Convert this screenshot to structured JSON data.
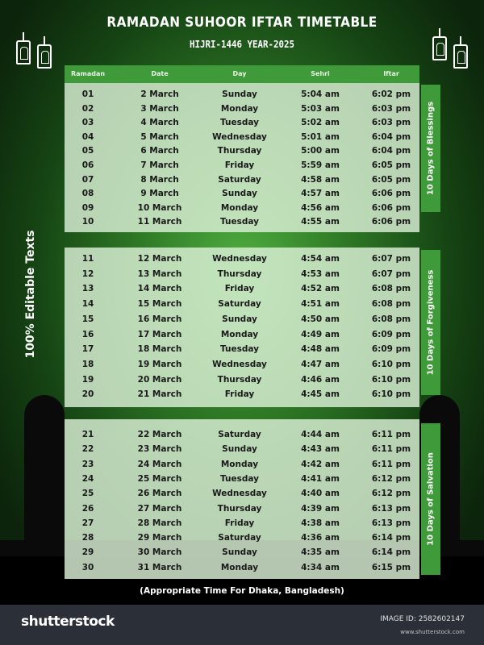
{
  "title": "RAMADAN  SUHOOR IFTAR TIMETABLE",
  "subtitle": "HIJRI-1446   YEAR-2025",
  "side_label": "100% Editable Texts",
  "columns": [
    "Ramadan",
    "Date",
    "Day",
    "Sehri",
    "Iftar"
  ],
  "sections": [
    {
      "label": "10 Days of Blessings",
      "rows": [
        [
          "01",
          "2 March",
          "Sunday",
          "5:04 am",
          "6:02 pm"
        ],
        [
          "02",
          "3 March",
          "Monday",
          "5:03 am",
          "6:03 pm"
        ],
        [
          "03",
          "4 March",
          "Tuesday",
          "5:02 am",
          "6:03 pm"
        ],
        [
          "04",
          "5 March",
          "Wednesday",
          "5:01 am",
          "6:04 pm"
        ],
        [
          "05",
          "6 March",
          "Thursday",
          "5:00 am",
          "6:04 pm"
        ],
        [
          "06",
          "7 March",
          "Friday",
          "5:59 am",
          "6:05 pm"
        ],
        [
          "07",
          "8 March",
          "Saturday",
          "4:58 am",
          "6:05 pm"
        ],
        [
          "08",
          "9 March",
          "Sunday",
          "4:57 am",
          "6:06 pm"
        ],
        [
          "09",
          "10 March",
          "Monday",
          "4:56 am",
          "6:06 pm"
        ],
        [
          "10",
          "11 March",
          "Tuesday",
          "4:55 am",
          "6:06 pm"
        ]
      ]
    },
    {
      "label": "10 Days of Forgiveness",
      "rows": [
        [
          "11",
          "12 March",
          "Wednesday",
          "4:54 am",
          "6:07 pm"
        ],
        [
          "12",
          "13 March",
          "Thursday",
          "4:53 am",
          "6:07 pm"
        ],
        [
          "13",
          "14 March",
          "Friday",
          "4:52 am",
          "6:08 pm"
        ],
        [
          "14",
          "15 March",
          "Saturday",
          "4:51 am",
          "6:08 pm"
        ],
        [
          "15",
          "16 March",
          "Sunday",
          "4:50 am",
          "6:08 pm"
        ],
        [
          "16",
          "17 March",
          "Monday",
          "4:49 am",
          "6:09 pm"
        ],
        [
          "17",
          "18 March",
          "Tuesday",
          "4:48 am",
          "6:09 pm"
        ],
        [
          "18",
          "19 March",
          "Wednesday",
          "4:47 am",
          "6:10 pm"
        ],
        [
          "19",
          "20 March",
          "Thursday",
          "4:46 am",
          "6:10 pm"
        ],
        [
          "20",
          "21 March",
          "Friday",
          "4:45 am",
          "6:10 pm"
        ]
      ]
    },
    {
      "label": "10 Days of Salvation",
      "rows": [
        [
          "21",
          "22 March",
          "Saturday",
          "4:44 am",
          "6:11 pm"
        ],
        [
          "22",
          "23 March",
          "Sunday",
          "4:43 am",
          "6:11 pm"
        ],
        [
          "23",
          "24 March",
          "Monday",
          "4:42 am",
          "6:11 pm"
        ],
        [
          "24",
          "25 March",
          "Tuesday",
          "4:41 am",
          "6:12 pm"
        ],
        [
          "25",
          "26 March",
          "Wednesday",
          "4:40 am",
          "6:12 pm"
        ],
        [
          "26",
          "27 March",
          "Thursday",
          "4:39 am",
          "6:13 pm"
        ],
        [
          "27",
          "28 March",
          "Friday",
          "4:38 am",
          "6:13 pm"
        ],
        [
          "28",
          "29 March",
          "Saturday",
          "4:36 am",
          "6:14 pm"
        ],
        [
          "29",
          "30 March",
          "Sunday",
          "4:35 am",
          "6:14 pm"
        ],
        [
          "30",
          "31 March",
          "Monday",
          "4:34 am",
          "6:15 pm"
        ]
      ]
    }
  ],
  "note": "(Appropriate Time For Dhaka, Bangladesh)",
  "footer": {
    "brand": "shutterstock",
    "image_id": "IMAGE ID: 2582602147",
    "site": "www.shutterstock.com"
  },
  "colors": {
    "header_green": "#3f9a3a",
    "footer_bg": "#2b3038"
  }
}
